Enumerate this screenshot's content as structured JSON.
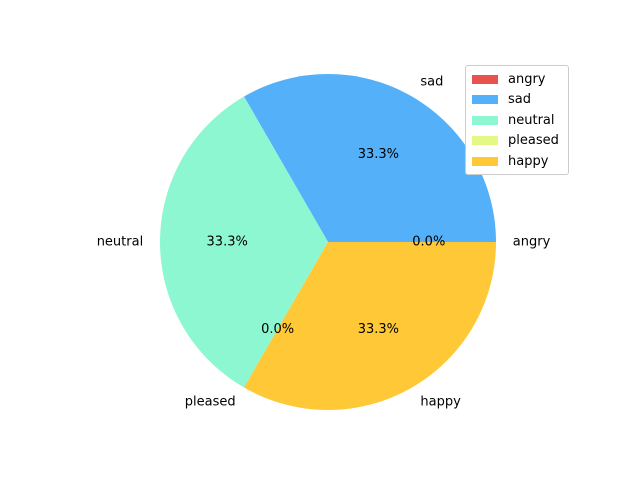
{
  "chart_data": {
    "type": "pie",
    "categories": [
      "angry",
      "sad",
      "neutral",
      "pleased",
      "happy"
    ],
    "values": [
      0,
      1,
      1,
      0,
      1
    ],
    "percent_labels": [
      "0.0%",
      "33.3%",
      "33.3%",
      "0.0%",
      "33.3%"
    ],
    "colors": [
      "#e8534f",
      "#54b1f9",
      "#8df7d1",
      "#e3f984",
      "#fec836"
    ],
    "start_angle_deg": 0,
    "direction": "counterclockwise",
    "legend": {
      "position": "upper-right",
      "entries": [
        "angry",
        "sad",
        "neutral",
        "pleased",
        "happy"
      ]
    }
  }
}
